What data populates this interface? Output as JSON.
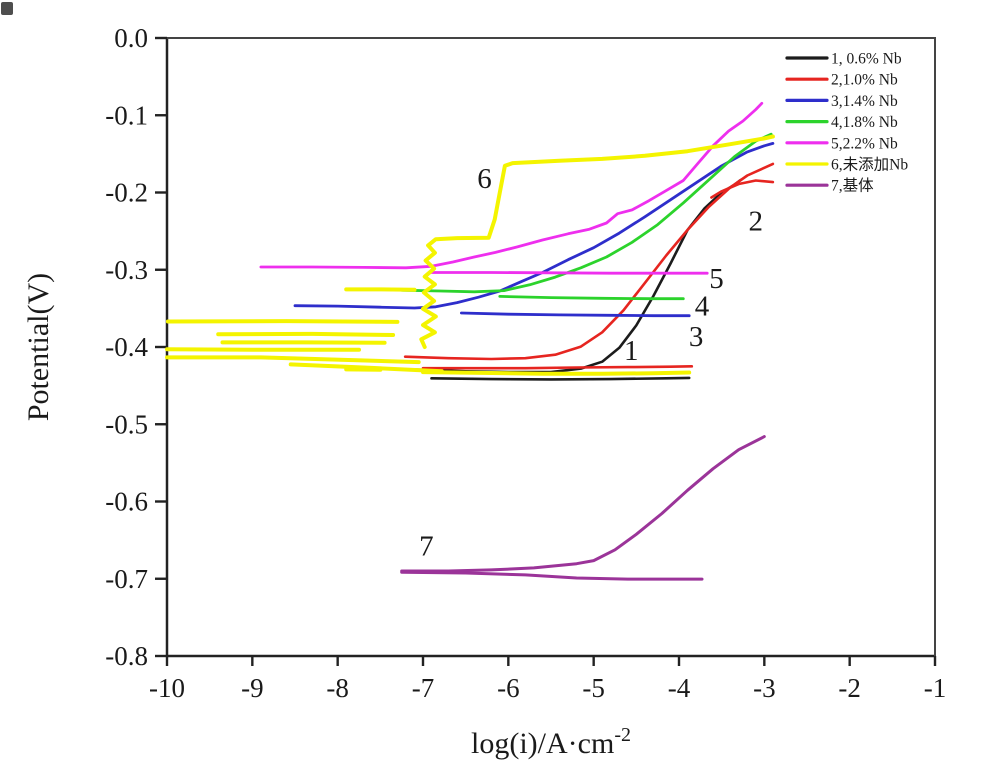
{
  "figure": {
    "background": "#ffffff",
    "spine_color": "#222222",
    "annotation_color": "#333333"
  },
  "chart_data": {
    "type": "line",
    "title": "",
    "xlabel": "log(i)/A·cm⁻²",
    "xlabel_main": "log(i)/A·cm",
    "xlabel_sup": "-2",
    "ylabel": "Potential(V)",
    "xlim": [
      -10,
      -1
    ],
    "ylim": [
      -0.8,
      0.0
    ],
    "grid": false,
    "legend_position": "top-right",
    "xticks": [
      -10,
      -9,
      -8,
      -7,
      -6,
      -5,
      -4,
      -3,
      -2,
      -1
    ],
    "xtick_labels": [
      "-10",
      "-9",
      "-8",
      "-7",
      "-6",
      "-5",
      "-4",
      "-3",
      "-2",
      "-1"
    ],
    "yticks": [
      0.0,
      -0.1,
      -0.2,
      -0.3,
      -0.4,
      -0.5,
      -0.6,
      -0.7,
      -0.8
    ],
    "ytick_labels": [
      "0.0",
      "-0.1",
      "-0.2",
      "-0.3",
      "-0.4",
      "-0.5",
      "-0.6",
      "-0.7",
      "-0.8"
    ],
    "series": [
      {
        "name": "1, 0.6% Nb",
        "color": "#1c1c1c",
        "width": 2.6,
        "branches": [
          [
            [
              -7.55,
              -0.428
            ],
            [
              -7.0,
              -0.4295
            ],
            [
              -6.5,
              -0.4315
            ],
            [
              -6.0,
              -0.4325
            ],
            [
              -5.5,
              -0.4325
            ],
            [
              -5.15,
              -0.428
            ],
            [
              -4.9,
              -0.419
            ],
            [
              -4.7,
              -0.401
            ],
            [
              -4.5,
              -0.372
            ],
            [
              -4.3,
              -0.334
            ],
            [
              -4.1,
              -0.292
            ],
            [
              -3.9,
              -0.2485
            ],
            [
              -3.7,
              -0.2205
            ],
            [
              -3.5,
              -0.2
            ],
            [
              -3.35,
              -0.19
            ],
            [
              -3.28,
              -0.184
            ]
          ],
          [
            [
              -6.9,
              -0.4405
            ],
            [
              -6.2,
              -0.4415
            ],
            [
              -5.5,
              -0.442
            ],
            [
              -4.8,
              -0.4415
            ],
            [
              -4.15,
              -0.4405
            ],
            [
              -3.88,
              -0.44
            ]
          ]
        ]
      },
      {
        "name": "2,1.0% Nb",
        "color": "#e62520",
        "width": 2.6,
        "branches": [
          [
            [
              -7.21,
              -0.4125
            ],
            [
              -6.7,
              -0.4145
            ],
            [
              -6.2,
              -0.4155
            ],
            [
              -5.8,
              -0.4145
            ],
            [
              -5.45,
              -0.41
            ],
            [
              -5.15,
              -0.3995
            ],
            [
              -4.9,
              -0.381
            ],
            [
              -4.65,
              -0.3525
            ],
            [
              -4.4,
              -0.317
            ],
            [
              -4.15,
              -0.2815
            ],
            [
              -3.9,
              -0.2485
            ],
            [
              -3.65,
              -0.2185
            ],
            [
              -3.4,
              -0.1935
            ],
            [
              -3.2,
              -0.178
            ],
            [
              -3.0,
              -0.168
            ],
            [
              -2.9,
              -0.163
            ]
          ],
          [
            [
              -2.9,
              -0.1865
            ],
            [
              -3.1,
              -0.1845
            ],
            [
              -3.3,
              -0.189
            ],
            [
              -3.5,
              -0.1985
            ],
            [
              -3.62,
              -0.2065
            ]
          ],
          [
            [
              -7.0,
              -0.4275
            ],
            [
              -6.4,
              -0.4275
            ],
            [
              -5.8,
              -0.4275
            ],
            [
              -5.2,
              -0.4265
            ],
            [
              -4.6,
              -0.426
            ],
            [
              -4.1,
              -0.4255
            ],
            [
              -3.85,
              -0.425
            ]
          ]
        ]
      },
      {
        "name": "3,1.4% Nb",
        "color": "#2e2ecb",
        "width": 2.8,
        "branches": [
          [
            [
              -8.5,
              -0.3465
            ],
            [
              -8.0,
              -0.347
            ],
            [
              -7.5,
              -0.3485
            ],
            [
              -7.1,
              -0.3495
            ],
            [
              -6.85,
              -0.348
            ],
            [
              -6.6,
              -0.3425
            ],
            [
              -6.35,
              -0.3355
            ],
            [
              -6.1,
              -0.3275
            ],
            [
              -5.85,
              -0.3155
            ],
            [
              -5.6,
              -0.3035
            ],
            [
              -5.3,
              -0.287
            ],
            [
              -5.0,
              -0.2715
            ],
            [
              -4.7,
              -0.2525
            ],
            [
              -4.4,
              -0.2315
            ],
            [
              -4.1,
              -0.2095
            ],
            [
              -3.8,
              -0.1875
            ],
            [
              -3.5,
              -0.1655
            ],
            [
              -3.2,
              -0.1475
            ],
            [
              -3.0,
              -0.1395
            ],
            [
              -2.9,
              -0.1365
            ]
          ],
          [
            [
              -6.55,
              -0.356
            ],
            [
              -6.0,
              -0.3575
            ],
            [
              -5.4,
              -0.3585
            ],
            [
              -4.8,
              -0.359
            ],
            [
              -4.3,
              -0.3595
            ],
            [
              -3.88,
              -0.3595
            ]
          ]
        ]
      },
      {
        "name": "4,1.8% Nb",
        "color": "#2cd32c",
        "width": 2.8,
        "branches": [
          [
            [
              -7.25,
              -0.3265
            ],
            [
              -6.8,
              -0.3275
            ],
            [
              -6.4,
              -0.3285
            ],
            [
              -6.05,
              -0.327
            ],
            [
              -5.75,
              -0.3195
            ],
            [
              -5.45,
              -0.3095
            ],
            [
              -5.15,
              -0.2975
            ],
            [
              -4.85,
              -0.2835
            ],
            [
              -4.55,
              -0.2645
            ],
            [
              -4.25,
              -0.2415
            ],
            [
              -3.95,
              -0.2135
            ],
            [
              -3.65,
              -0.1835
            ],
            [
              -3.35,
              -0.1535
            ],
            [
              -3.1,
              -0.1335
            ],
            [
              -2.92,
              -0.1245
            ]
          ],
          [
            [
              -6.1,
              -0.3345
            ],
            [
              -5.5,
              -0.336
            ],
            [
              -4.9,
              -0.337
            ],
            [
              -4.35,
              -0.3375
            ],
            [
              -3.95,
              -0.3375
            ]
          ]
        ]
      },
      {
        "name": "5,2.2% Nb",
        "color": "#ee2fee",
        "width": 2.8,
        "branches": [
          [
            [
              -8.9,
              -0.2965
            ],
            [
              -8.3,
              -0.2965
            ],
            [
              -7.7,
              -0.297
            ],
            [
              -7.2,
              -0.2975
            ],
            [
              -6.9,
              -0.2955
            ],
            [
              -6.65,
              -0.29
            ],
            [
              -6.4,
              -0.2835
            ],
            [
              -6.15,
              -0.2775
            ],
            [
              -5.9,
              -0.2705
            ],
            [
              -5.6,
              -0.2615
            ],
            [
              -5.3,
              -0.2535
            ],
            [
              -5.05,
              -0.2475
            ],
            [
              -4.85,
              -0.2395
            ],
            [
              -4.72,
              -0.2275
            ],
            [
              -4.55,
              -0.2225
            ],
            [
              -4.35,
              -0.2105
            ],
            [
              -4.15,
              -0.1975
            ],
            [
              -3.95,
              -0.1845
            ],
            [
              -3.78,
              -0.1625
            ],
            [
              -3.6,
              -0.1395
            ],
            [
              -3.42,
              -0.1205
            ],
            [
              -3.25,
              -0.1075
            ],
            [
              -3.1,
              -0.0925
            ],
            [
              -3.03,
              -0.0845
            ]
          ],
          [
            [
              -6.9,
              -0.3035
            ],
            [
              -6.2,
              -0.3035
            ],
            [
              -5.5,
              -0.304
            ],
            [
              -4.8,
              -0.3045
            ],
            [
              -4.2,
              -0.3045
            ],
            [
              -3.67,
              -0.3045
            ]
          ]
        ]
      },
      {
        "name": "6,未添加Nb",
        "color": "#f4f400",
        "width": 4,
        "branches": [
          [
            [
              -9.99,
              -0.367
            ],
            [
              -8.6,
              -0.3665
            ],
            [
              -7.3,
              -0.3675
            ]
          ],
          [
            [
              -9.4,
              -0.3835
            ],
            [
              -8.3,
              -0.383
            ],
            [
              -7.35,
              -0.3845
            ]
          ],
          [
            [
              -9.35,
              -0.394
            ],
            [
              -8.4,
              -0.394
            ],
            [
              -7.45,
              -0.3945
            ]
          ],
          [
            [
              -10.0,
              -0.403
            ],
            [
              -9.0,
              -0.4035
            ],
            [
              -7.75,
              -0.4035
            ]
          ],
          [
            [
              -10.0,
              -0.4135
            ],
            [
              -8.9,
              -0.4135
            ],
            [
              -7.05,
              -0.4195
            ]
          ],
          [
            [
              -8.55,
              -0.4225
            ],
            [
              -7.6,
              -0.427
            ],
            [
              -6.78,
              -0.4315
            ]
          ],
          [
            [
              -7.9,
              -0.3255
            ],
            [
              -7.5,
              -0.3255
            ],
            [
              -7.1,
              -0.326
            ]
          ],
          [
            [
              -7.9,
              -0.429
            ],
            [
              -7.5,
              -0.4295
            ]
          ],
          [
            [
              -6.98,
              -0.4
            ],
            [
              -7.02,
              -0.39
            ],
            [
              -6.86,
              -0.381
            ],
            [
              -7.0,
              -0.3715
            ],
            [
              -6.85,
              -0.3605
            ],
            [
              -7.0,
              -0.3505
            ],
            [
              -6.87,
              -0.3405
            ],
            [
              -6.99,
              -0.3295
            ],
            [
              -6.86,
              -0.319
            ],
            [
              -6.98,
              -0.309
            ],
            [
              -6.87,
              -0.2985
            ],
            [
              -6.97,
              -0.288
            ],
            [
              -6.86,
              -0.278
            ],
            [
              -6.94,
              -0.2685
            ],
            [
              -6.85,
              -0.2605
            ],
            [
              -6.6,
              -0.259
            ],
            [
              -6.23,
              -0.2585
            ],
            [
              -6.16,
              -0.235
            ],
            [
              -6.1,
              -0.2
            ],
            [
              -6.04,
              -0.1655
            ],
            [
              -5.95,
              -0.162
            ],
            [
              -5.4,
              -0.159
            ],
            [
              -4.9,
              -0.1565
            ],
            [
              -4.4,
              -0.1525
            ],
            [
              -3.9,
              -0.1465
            ],
            [
              -3.4,
              -0.1375
            ],
            [
              -3.0,
              -0.13
            ],
            [
              -2.9,
              -0.1275
            ]
          ],
          [
            [
              -7.0,
              -0.4325
            ],
            [
              -6.3,
              -0.4335
            ],
            [
              -5.6,
              -0.4345
            ],
            [
              -4.9,
              -0.4345
            ],
            [
              -4.3,
              -0.434
            ],
            [
              -3.88,
              -0.433
            ]
          ]
        ]
      },
      {
        "name": "7,基体",
        "color": "#9b3499",
        "width": 3,
        "branches": [
          [
            [
              -7.25,
              -0.69
            ],
            [
              -6.7,
              -0.69
            ],
            [
              -6.2,
              -0.6885
            ],
            [
              -5.7,
              -0.686
            ],
            [
              -5.2,
              -0.6805
            ],
            [
              -5.0,
              -0.6765
            ],
            [
              -4.75,
              -0.6625
            ],
            [
              -4.5,
              -0.6425
            ],
            [
              -4.2,
              -0.6155
            ],
            [
              -3.9,
              -0.5855
            ],
            [
              -3.6,
              -0.5575
            ],
            [
              -3.3,
              -0.533
            ],
            [
              -3.0,
              -0.516
            ]
          ],
          [
            [
              -7.25,
              -0.6915
            ],
            [
              -6.5,
              -0.6925
            ],
            [
              -5.8,
              -0.695
            ],
            [
              -5.2,
              -0.699
            ],
            [
              -4.6,
              -0.7005
            ],
            [
              -4.1,
              -0.7005
            ],
            [
              -3.73,
              -0.7005
            ]
          ]
        ]
      }
    ],
    "annotations": [
      {
        "text": "6",
        "x": -6.28,
        "y": -0.181
      },
      {
        "text": "2",
        "x": -3.1,
        "y": -0.236
      },
      {
        "text": "5",
        "x": -3.56,
        "y": -0.311
      },
      {
        "text": "4",
        "x": -3.73,
        "y": -0.346
      },
      {
        "text": "3",
        "x": -3.8,
        "y": -0.386
      },
      {
        "text": "1",
        "x": -4.56,
        "y": -0.404
      },
      {
        "text": "7",
        "x": -6.96,
        "y": -0.657
      }
    ]
  }
}
